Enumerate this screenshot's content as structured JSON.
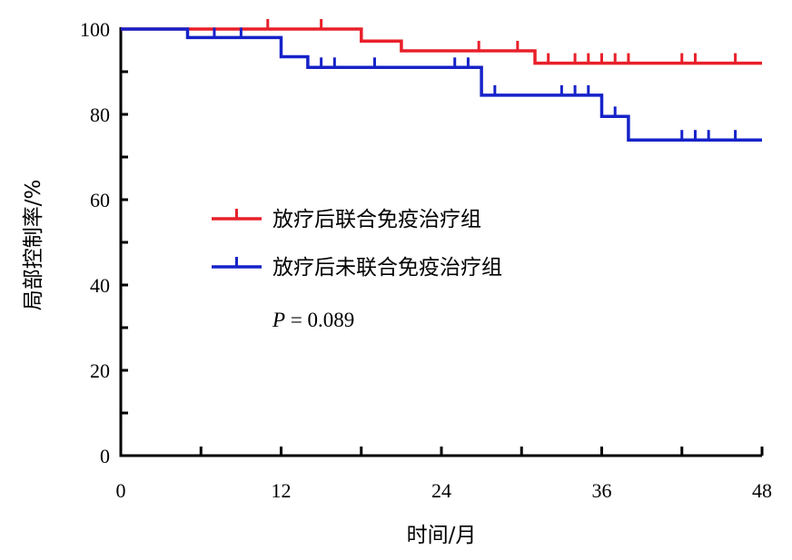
{
  "chart_data": {
    "type": "line",
    "subtype": "kaplan-meier-step",
    "title": "",
    "xlabel": "时间/月",
    "ylabel": "局部控制率/%",
    "xlim": [
      0,
      48
    ],
    "ylim": [
      0,
      100
    ],
    "xticks": [
      0,
      12,
      24,
      36,
      48
    ],
    "yticks": [
      0,
      20,
      40,
      60,
      80,
      100
    ],
    "x_minor_step": 6,
    "y_minor_step": 10,
    "grid": false,
    "legend_position": "center-left",
    "p_value": "0.089",
    "p_label": "P",
    "series": [
      {
        "name": "放疗后联合免疫治疗组",
        "color": "#e8202a",
        "steps": [
          [
            0,
            100
          ],
          [
            18,
            100
          ],
          [
            18,
            97.2
          ],
          [
            21,
            97.2
          ],
          [
            21,
            94.9
          ],
          [
            31,
            94.9
          ],
          [
            31,
            92
          ]
        ],
        "end_x": 48,
        "censored": [
          [
            11,
            100
          ],
          [
            15,
            100
          ],
          [
            26.8,
            94.9
          ],
          [
            29.7,
            94.9
          ],
          [
            32,
            92
          ],
          [
            34,
            92
          ],
          [
            35,
            92
          ],
          [
            36,
            92
          ],
          [
            37,
            92
          ],
          [
            38,
            92
          ],
          [
            42,
            92
          ],
          [
            43,
            92
          ],
          [
            46,
            92
          ]
        ]
      },
      {
        "name": "放疗后未联合免疫治疗组",
        "color": "#1622c9",
        "steps": [
          [
            0,
            100
          ],
          [
            5,
            100
          ],
          [
            5,
            98
          ],
          [
            12,
            98
          ],
          [
            12,
            93.5
          ],
          [
            14,
            93.5
          ],
          [
            14,
            91
          ],
          [
            27,
            91
          ],
          [
            27,
            84.5
          ],
          [
            36,
            84.5
          ],
          [
            36,
            79.5
          ],
          [
            38,
            79.5
          ],
          [
            38,
            74
          ]
        ],
        "end_x": 48,
        "censored": [
          [
            7,
            98
          ],
          [
            9,
            98
          ],
          [
            15,
            91
          ],
          [
            16,
            91
          ],
          [
            19,
            91
          ],
          [
            25,
            91
          ],
          [
            26,
            91
          ],
          [
            28,
            84.5
          ],
          [
            33,
            84.5
          ],
          [
            34,
            84.5
          ],
          [
            35,
            84.5
          ],
          [
            37,
            79.5
          ],
          [
            42,
            74
          ],
          [
            43,
            74
          ],
          [
            44,
            74
          ],
          [
            46,
            74
          ]
        ]
      }
    ]
  }
}
